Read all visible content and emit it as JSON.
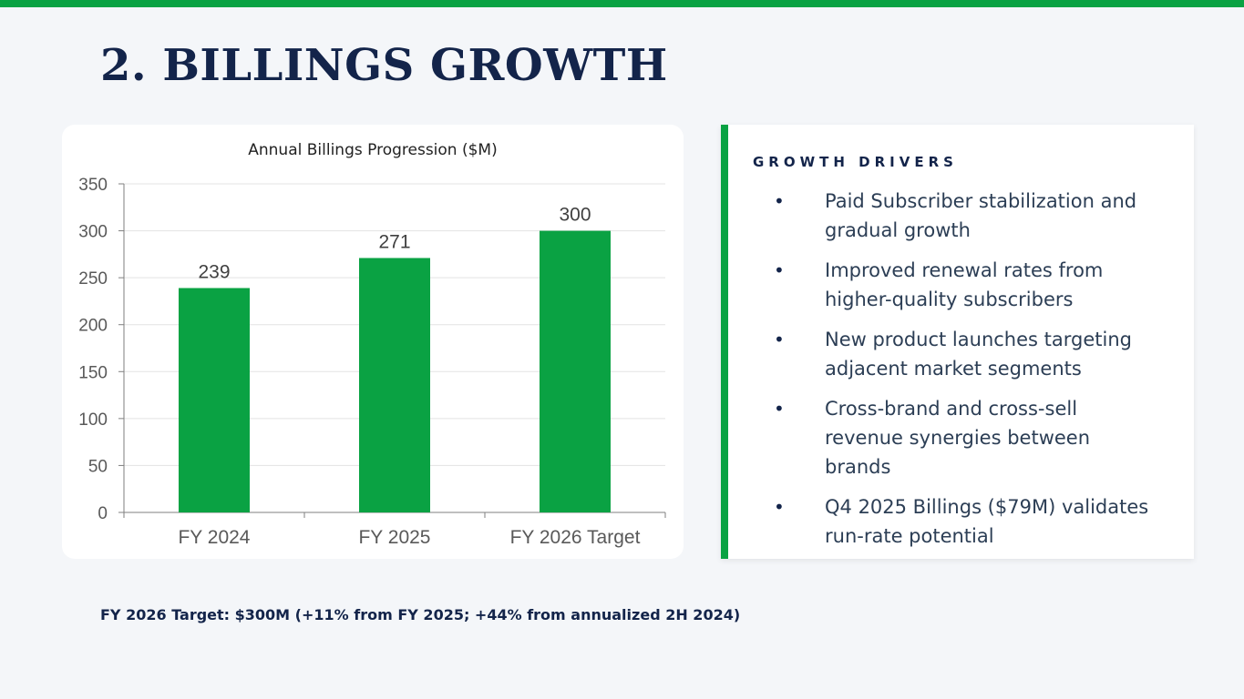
{
  "slide": {
    "title": "2. BILLINGS GROWTH",
    "accent_color": "#0aa243",
    "title_color": "#13244a",
    "footnote": "FY 2026 Target: $300M (+11% from FY 2025; +44% from annualized 2H 2024)"
  },
  "chart_data": {
    "type": "bar",
    "title": "Annual Billings Progression ($M)",
    "categories": [
      "FY 2024",
      "FY 2025",
      "FY 2026 Target"
    ],
    "values": [
      239,
      271,
      300
    ],
    "data_labels": [
      "239",
      "271",
      "300"
    ],
    "xlabel": "",
    "ylabel": "",
    "ylim": [
      0,
      350
    ],
    "yticks": [
      0,
      50,
      100,
      150,
      200,
      250,
      300,
      350
    ],
    "grid": true,
    "bar_color": "#0aa243"
  },
  "drivers": {
    "heading": "GROWTH DRIVERS",
    "items": [
      "Paid Subscriber stabilization and gradual growth",
      "Improved renewal rates from higher-quality subscribers",
      "New product launches targeting adjacent market segments",
      "Cross-brand and cross-sell revenue synergies between brands",
      "Q4 2025 Billings ($79M) validates run-rate potential"
    ]
  }
}
